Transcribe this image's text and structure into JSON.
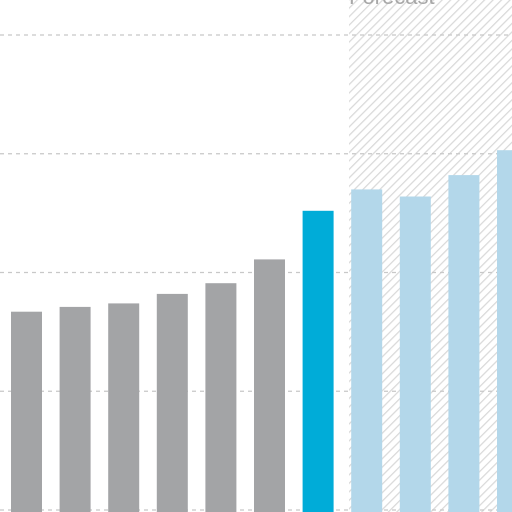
{
  "chart_data": {
    "type": "bar",
    "ylim": [
      0,
      4.16
    ],
    "grid": true,
    "forecast_label": "Forecast",
    "colors": {
      "historical": "#a3a4a6",
      "current": "#00acd8",
      "forecast": "#b3d7ea",
      "forecast_hatch": "#d9d9d9",
      "gridline": "#c8c8c8"
    },
    "bars": [
      {
        "value": 1.67,
        "kind": "historical"
      },
      {
        "value": 1.71,
        "kind": "historical"
      },
      {
        "value": 1.74,
        "kind": "historical"
      },
      {
        "value": 1.82,
        "kind": "historical"
      },
      {
        "value": 1.91,
        "kind": "historical"
      },
      {
        "value": 2.11,
        "kind": "historical"
      },
      {
        "value": 2.52,
        "kind": "current"
      },
      {
        "value": 2.7,
        "kind": "forecast"
      },
      {
        "value": 2.64,
        "kind": "forecast"
      },
      {
        "value": 2.82,
        "kind": "forecast"
      },
      {
        "value": 3.03,
        "kind": "forecast"
      }
    ],
    "gridlines": [
      0,
      1,
      2,
      3,
      4
    ]
  }
}
